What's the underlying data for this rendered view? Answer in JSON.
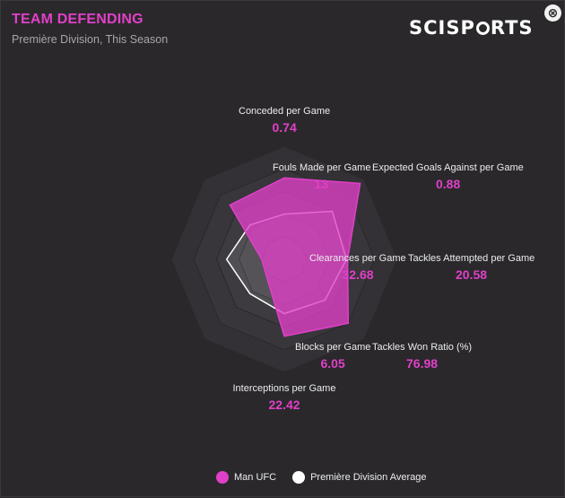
{
  "header": {
    "title": "TEAM DEFENDING",
    "subtitle": "Première Division, This Season",
    "brand": "SCISPORTS",
    "close_symbol": "⊗"
  },
  "colors": {
    "team": "#e040c8",
    "average": "#ffffff",
    "background": "#2a282b"
  },
  "chart_data": {
    "type": "radar",
    "axes": [
      {
        "label": "Conceded per Game",
        "value": "0.74"
      },
      {
        "label": "Expected Goals Against per Game",
        "value": "0.88"
      },
      {
        "label": "Tackles Attempted per Game",
        "value": "20.58"
      },
      {
        "label": "Tackles Won Ratio (%)",
        "value": "76.98"
      },
      {
        "label": "Interceptions per Game",
        "value": "22.42"
      },
      {
        "label": "Blocks per Game",
        "value": "6.05"
      },
      {
        "label": "Clearances per Game",
        "value": "32.68"
      },
      {
        "label": "Fouls Made per Game",
        "value": "13"
      }
    ],
    "rings": 5,
    "series": [
      {
        "name": "Man UFC",
        "normalized": [
          0.72,
          0.95,
          0.56,
          0.8,
          0.68,
          0.22,
          0.2,
          0.68
        ]
      },
      {
        "name": "Première Division Average",
        "normalized": [
          0.4,
          0.6,
          0.55,
          0.51,
          0.48,
          0.43,
          0.51,
          0.43
        ]
      }
    ]
  },
  "legend": {
    "items": [
      {
        "label": "Man UFC",
        "color": "#e040c8"
      },
      {
        "label": "Première Division Average",
        "color": "#ffffff"
      }
    ]
  }
}
